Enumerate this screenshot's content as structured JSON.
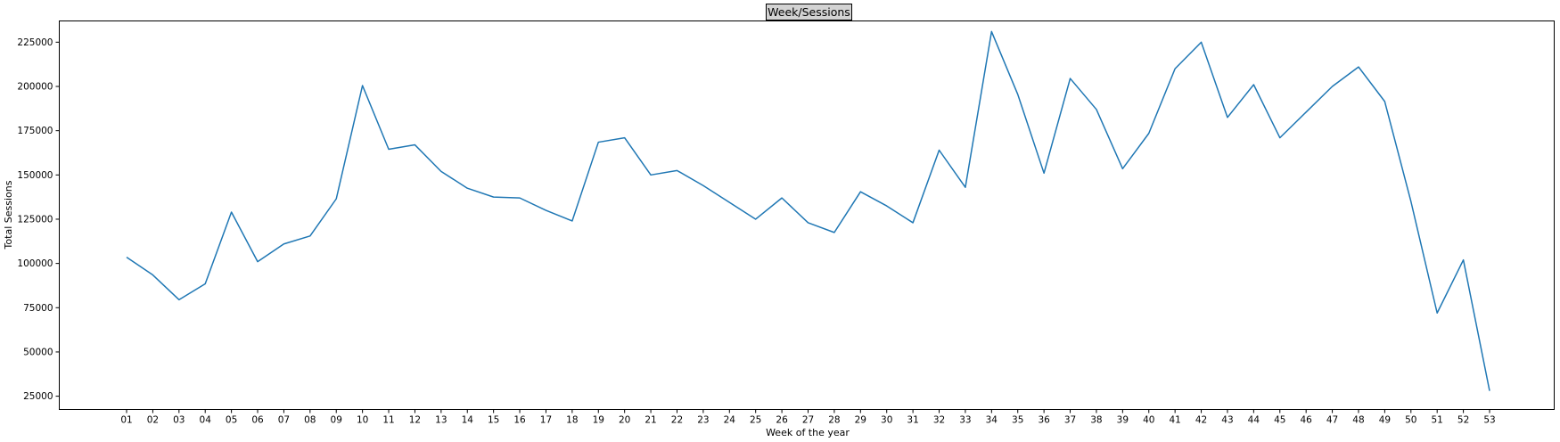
{
  "chart_data": {
    "type": "line",
    "title": "Week/Sessions",
    "xlabel": "Week of the year",
    "ylabel": "Total Sessions",
    "grid": false,
    "ylim": [
      17500,
      237000
    ],
    "yticks": [
      25000,
      50000,
      75000,
      100000,
      125000,
      150000,
      175000,
      200000,
      225000
    ],
    "categories": [
      "01",
      "02",
      "03",
      "04",
      "05",
      "06",
      "07",
      "08",
      "09",
      "10",
      "11",
      "12",
      "13",
      "14",
      "15",
      "16",
      "17",
      "18",
      "19",
      "20",
      "21",
      "22",
      "23",
      "24",
      "25",
      "26",
      "27",
      "28",
      "29",
      "30",
      "31",
      "32",
      "33",
      "34",
      "35",
      "36",
      "37",
      "38",
      "39",
      "40",
      "41",
      "42",
      "43",
      "44",
      "45",
      "46",
      "47",
      "48",
      "49",
      "50",
      "51",
      "52",
      "53"
    ],
    "series": [
      {
        "color": "#1f77b4",
        "values": [
          103500,
          93500,
          79500,
          88500,
          129000,
          101000,
          111000,
          115500,
          136500,
          200500,
          164500,
          167000,
          152000,
          142500,
          137500,
          137000,
          130000,
          124000,
          168500,
          171000,
          150000,
          152500,
          144000,
          134500,
          125000,
          137000,
          123000,
          117500,
          140500,
          132500,
          123000,
          164000,
          143000,
          231000,
          195500,
          151000,
          204500,
          187000,
          153500,
          173500,
          210000,
          225000,
          182500,
          201000,
          171000,
          185500,
          200000,
          211000,
          191500,
          135000,
          72000,
          102000,
          28000
        ]
      }
    ]
  }
}
